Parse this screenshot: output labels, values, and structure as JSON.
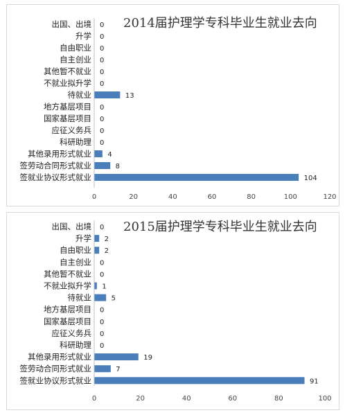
{
  "colors": {
    "bar": "#4a7ebb",
    "axis": "#bfbfbf"
  },
  "chart_data": [
    {
      "type": "bar",
      "orientation": "horizontal",
      "title": "2014届护理学专科毕业生就业去向",
      "categories": [
        "出国、出境",
        "升学",
        "自由职业",
        "自主创业",
        "其他暂不就业",
        "不就业拟升学",
        "待就业",
        "地方基层项目",
        "国家基层项目",
        "应征义务兵",
        "科研助理",
        "其他录用形式就业",
        "签劳动合同形式就业",
        "签就业协议形式就业"
      ],
      "values": [
        0,
        0,
        0,
        0,
        0,
        0,
        13,
        0,
        0,
        0,
        0,
        4,
        8,
        104
      ],
      "xlim": [
        0,
        120
      ],
      "xticks": [
        "0",
        "20",
        "40",
        "60",
        "80",
        "100",
        "120"
      ],
      "grid": false
    },
    {
      "type": "bar",
      "orientation": "horizontal",
      "title": "2015届护理学专科毕业生就业去向",
      "categories": [
        "出国、出境",
        "升学",
        "自由职业",
        "自主创业",
        "其他暂不就业",
        "不就业拟升学",
        "待就业",
        "地方基层项目",
        "国家基层项目",
        "应征义务兵",
        "科研助理",
        "其他录用形式就业",
        "签劳动合同形式就业",
        "签就业协议形式就业"
      ],
      "values": [
        0,
        2,
        2,
        0,
        0,
        1,
        5,
        0,
        0,
        0,
        0,
        19,
        7,
        91
      ],
      "xlim": [
        0,
        100
      ],
      "xticks": [
        "0",
        "20",
        "40",
        "60",
        "80",
        "100"
      ],
      "grid": false
    }
  ]
}
